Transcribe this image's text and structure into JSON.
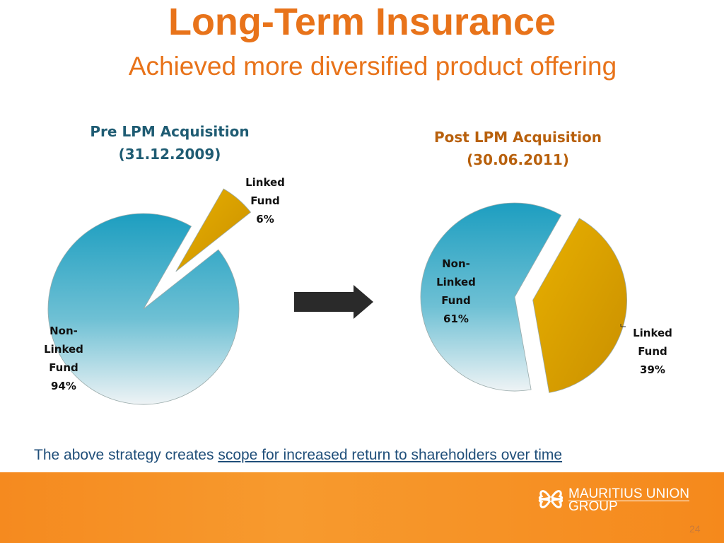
{
  "title": "Long-Term Insurance",
  "subtitle": "Achieved more diversified product offering",
  "chart_data": [
    {
      "type": "pie",
      "title": "Pre LPM Acquisition",
      "subtitle": "(31.12.2009)",
      "slices": [
        {
          "label_lines": [
            "Non-",
            "Linked",
            "Fund"
          ],
          "value": 94,
          "value_label": "94%"
        },
        {
          "label_lines": [
            "Linked",
            "Fund"
          ],
          "value": 6,
          "value_label": "6%"
        }
      ]
    },
    {
      "type": "pie",
      "title": "Post LPM Acquisition",
      "subtitle": "(30.06.2011)",
      "slices": [
        {
          "label_lines": [
            "Non-",
            "Linked",
            "Fund"
          ],
          "value": 61,
          "value_label": "61%"
        },
        {
          "label_lines": [
            "Linked",
            "Fund"
          ],
          "value": 39,
          "value_label": "39%"
        }
      ]
    }
  ],
  "colors": {
    "title": "#e8731a",
    "pre_title": "#1f5c73",
    "post_title": "#b8600c",
    "non_linked": "#2aa3c2",
    "linked": "#d9a000"
  },
  "note": {
    "prefix": "The above strategy creates ",
    "link": "scope for increased return to shareholders over time"
  },
  "footer": {
    "logo_line1": "MAURITIUS UNION",
    "logo_line2": "GROUP",
    "page": "24"
  }
}
